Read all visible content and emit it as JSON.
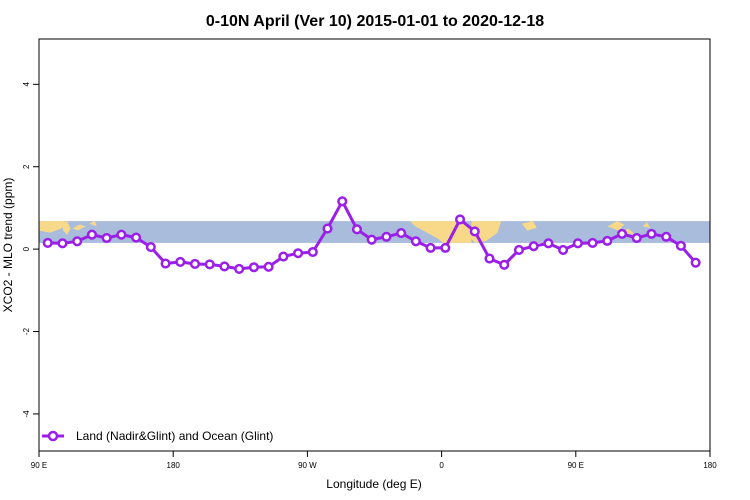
{
  "chart_data": {
    "type": "line",
    "title": "0-10N April (Ver 10)   2015-01-01 to 2020-12-18",
    "xlabel": "Longitude (deg E)",
    "ylabel": "XCO2 - MLO trend (ppm)",
    "xlim": [
      30,
      390
    ],
    "ylim": [
      -4.9,
      5.1
    ],
    "x_ticks": [
      {
        "value": 30,
        "label": "90 E"
      },
      {
        "value": 102,
        "label": "180"
      },
      {
        "value": 174,
        "label": "90 W"
      },
      {
        "value": 246,
        "label": "0"
      },
      {
        "value": 318,
        "label": "90 E"
      },
      {
        "value": 390,
        "label": "180"
      }
    ],
    "y_ticks": [
      {
        "value": -4,
        "label": "-4"
      },
      {
        "value": -2,
        "label": "-2"
      },
      {
        "value": 0,
        "label": "0"
      },
      {
        "value": 2,
        "label": "2"
      },
      {
        "value": 4,
        "label": "4"
      }
    ],
    "grid": false,
    "legend_position": "bottom-left",
    "map_band": {
      "ymin": 0.15,
      "ymax": 0.68,
      "ocean_color": "#a9bcdb",
      "land_color": "#f8d98a"
    },
    "series": [
      {
        "name": "Land (Nadir&Glint) and Ocean (Glint)",
        "color": "#9b1fe8",
        "points": [
          {
            "x": 34.7,
            "y": 0.15
          },
          {
            "x": 42.6,
            "y": 0.14
          },
          {
            "x": 50.5,
            "y": 0.19
          },
          {
            "x": 58.4,
            "y": 0.35
          },
          {
            "x": 66.3,
            "y": 0.27
          },
          {
            "x": 74.2,
            "y": 0.35
          },
          {
            "x": 82.1,
            "y": 0.28
          },
          {
            "x": 90.0,
            "y": 0.05
          },
          {
            "x": 97.9,
            "y": -0.35
          },
          {
            "x": 105.8,
            "y": -0.31
          },
          {
            "x": 113.7,
            "y": -0.36
          },
          {
            "x": 121.6,
            "y": -0.37
          },
          {
            "x": 129.5,
            "y": -0.42
          },
          {
            "x": 137.4,
            "y": -0.48
          },
          {
            "x": 145.3,
            "y": -0.44
          },
          {
            "x": 153.2,
            "y": -0.43
          },
          {
            "x": 161.1,
            "y": -0.18
          },
          {
            "x": 169.0,
            "y": -0.1
          },
          {
            "x": 176.9,
            "y": -0.07
          },
          {
            "x": 184.8,
            "y": 0.5
          },
          {
            "x": 192.7,
            "y": 1.16
          },
          {
            "x": 200.6,
            "y": 0.48
          },
          {
            "x": 208.5,
            "y": 0.23
          },
          {
            "x": 216.4,
            "y": 0.3
          },
          {
            "x": 224.3,
            "y": 0.39
          },
          {
            "x": 232.2,
            "y": 0.19
          },
          {
            "x": 240.1,
            "y": 0.03
          },
          {
            "x": 248.0,
            "y": 0.03
          },
          {
            "x": 255.9,
            "y": 0.72
          },
          {
            "x": 263.8,
            "y": 0.43
          },
          {
            "x": 271.7,
            "y": -0.23
          },
          {
            "x": 279.6,
            "y": -0.38
          },
          {
            "x": 287.5,
            "y": -0.02
          },
          {
            "x": 295.4,
            "y": 0.07
          },
          {
            "x": 303.3,
            "y": 0.14
          },
          {
            "x": 311.2,
            "y": -0.02
          },
          {
            "x": 319.1,
            "y": 0.14
          },
          {
            "x": 327.0,
            "y": 0.15
          },
          {
            "x": 334.9,
            "y": 0.2
          },
          {
            "x": 342.8,
            "y": 0.37
          },
          {
            "x": 350.7,
            "y": 0.27
          },
          {
            "x": 358.6,
            "y": 0.37
          },
          {
            "x": 366.5,
            "y": 0.3
          },
          {
            "x": 374.4,
            "y": 0.08
          },
          {
            "x": 382.3,
            "y": -0.33
          }
        ]
      }
    ]
  }
}
